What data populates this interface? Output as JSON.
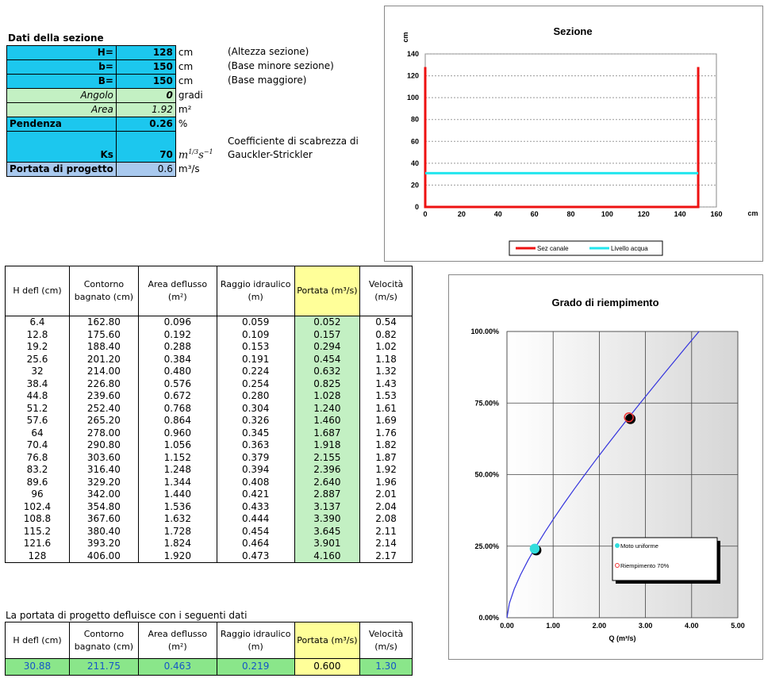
{
  "section_title": "Dati della sezione",
  "inputs": {
    "H": {
      "label": "H=",
      "value": "128",
      "unit": "cm",
      "desc": "(Altezza sezione)"
    },
    "b": {
      "label": "b=",
      "value": "150",
      "unit": "cm",
      "desc": "(Base minore sezione)"
    },
    "B": {
      "label": "B=",
      "value": "150",
      "unit": "cm",
      "desc": "(Base maggiore)"
    },
    "angolo": {
      "label": "Angolo",
      "value": "0",
      "unit": "gradi"
    },
    "area": {
      "label": "Area",
      "value": "1.92",
      "unit": "m²"
    },
    "pendenza": {
      "label": "Pendenza",
      "value": "0.26",
      "unit": "%"
    },
    "ks": {
      "label": "Ks",
      "value": "70",
      "unit_main": "m",
      "unit_exp1": "1/3",
      "unit_mid": "s",
      "unit_exp2": "−1",
      "desc1": "Coefficiente di scabrezza di",
      "desc2": "Gauckler-Strickler"
    },
    "portata": {
      "label": "Portata di progetto",
      "value": "0.6",
      "unit": "m³/s"
    }
  },
  "table": {
    "headers": [
      "H defl (cm)",
      "Contorno bagnato (cm)",
      "Area deflusso (m²)",
      "Raggio idraulico (m)",
      "Portata (m³/s)",
      "Velocità (m/s)"
    ],
    "rows": [
      [
        "6.4",
        "162.80",
        "0.096",
        "0.059",
        "0.052",
        "0.54"
      ],
      [
        "12.8",
        "175.60",
        "0.192",
        "0.109",
        "0.157",
        "0.82"
      ],
      [
        "19.2",
        "188.40",
        "0.288",
        "0.153",
        "0.294",
        "1.02"
      ],
      [
        "25.6",
        "201.20",
        "0.384",
        "0.191",
        "0.454",
        "1.18"
      ],
      [
        "32",
        "214.00",
        "0.480",
        "0.224",
        "0.632",
        "1.32"
      ],
      [
        "38.4",
        "226.80",
        "0.576",
        "0.254",
        "0.825",
        "1.43"
      ],
      [
        "44.8",
        "239.60",
        "0.672",
        "0.280",
        "1.028",
        "1.53"
      ],
      [
        "51.2",
        "252.40",
        "0.768",
        "0.304",
        "1.240",
        "1.61"
      ],
      [
        "57.6",
        "265.20",
        "0.864",
        "0.326",
        "1.460",
        "1.69"
      ],
      [
        "64",
        "278.00",
        "0.960",
        "0.345",
        "1.687",
        "1.76"
      ],
      [
        "70.4",
        "290.80",
        "1.056",
        "0.363",
        "1.918",
        "1.82"
      ],
      [
        "76.8",
        "303.60",
        "1.152",
        "0.379",
        "2.155",
        "1.87"
      ],
      [
        "83.2",
        "316.40",
        "1.248",
        "0.394",
        "2.396",
        "1.92"
      ],
      [
        "89.6",
        "329.20",
        "1.344",
        "0.408",
        "2.640",
        "1.96"
      ],
      [
        "96",
        "342.00",
        "1.440",
        "0.421",
        "2.887",
        "2.01"
      ],
      [
        "102.4",
        "354.80",
        "1.536",
        "0.433",
        "3.137",
        "2.04"
      ],
      [
        "108.8",
        "367.60",
        "1.632",
        "0.444",
        "3.390",
        "2.08"
      ],
      [
        "115.2",
        "380.40",
        "1.728",
        "0.454",
        "3.645",
        "2.11"
      ],
      [
        "121.6",
        "393.20",
        "1.824",
        "0.464",
        "3.901",
        "2.14"
      ],
      [
        "128",
        "406.00",
        "1.920",
        "0.473",
        "4.160",
        "2.17"
      ]
    ]
  },
  "result_note": "La portata di progetto defluisce con i seguenti dati",
  "result_row": [
    "30.88",
    "211.75",
    "0.463",
    "0.219",
    "0.600",
    "1.30"
  ],
  "colors": {
    "cyan": "#1cc7ee",
    "light_green": "#c3f0c3",
    "light_blue": "#a9c9ee",
    "yellow": "#ffff99",
    "result_green": "#8ae68a",
    "result_text": "#1555c7"
  },
  "chart_data": [
    {
      "type": "line",
      "title": "Sezione",
      "ylabel": "cm",
      "xunit": "cm",
      "xlim": [
        0,
        160
      ],
      "ylim": [
        0,
        140
      ],
      "xticks": [
        "0",
        "20",
        "40",
        "60",
        "80",
        "100",
        "120",
        "140",
        "160"
      ],
      "yticks": [
        "0",
        "20",
        "40",
        "60",
        "80",
        "100",
        "120",
        "140"
      ],
      "grid": true,
      "legend_position": "bottom",
      "series": [
        {
          "name": "Sez canale",
          "color": "#ee1111",
          "x": [
            0,
            0,
            150,
            150
          ],
          "y": [
            128,
            0,
            0,
            128
          ]
        },
        {
          "name": "Livello acqua",
          "color": "#22e6ee",
          "x": [
            0,
            150
          ],
          "y": [
            30.88,
            30.88
          ]
        }
      ]
    },
    {
      "type": "scatter",
      "title": "Grado di riempimento",
      "xlabel": "Q (m³/s)",
      "xlim": [
        0,
        5
      ],
      "ylim": [
        0,
        1
      ],
      "xticks": [
        "0.00",
        "1.00",
        "2.00",
        "3.00",
        "4.00",
        "5.00"
      ],
      "yticks": [
        "0.00%",
        "25.00%",
        "50.00%",
        "75.00%",
        "100.00%"
      ],
      "grid": true,
      "legend_position": "bottom-right",
      "curve": {
        "color": "#3333dd",
        "x": [
          0,
          0.052,
          0.157,
          0.294,
          0.454,
          0.632,
          0.825,
          1.028,
          1.24,
          1.46,
          1.687,
          1.918,
          2.155,
          2.396,
          2.64,
          2.887,
          3.137,
          3.39,
          3.645,
          3.901,
          4.16
        ],
        "y": [
          0,
          0.05,
          0.1,
          0.15,
          0.2,
          0.25,
          0.3,
          0.35,
          0.4,
          0.45,
          0.5,
          0.55,
          0.6,
          0.65,
          0.7,
          0.75,
          0.8,
          0.85,
          0.9,
          0.95,
          1.0
        ]
      },
      "series": [
        {
          "name": "Moto uniforme",
          "color": "#33dddd",
          "x": [
            0.6
          ],
          "y": [
            0.2412
          ]
        },
        {
          "name": "Riempimento 70%",
          "color": "#ee3333",
          "x": [
            2.64
          ],
          "y": [
            0.7
          ]
        }
      ]
    }
  ]
}
